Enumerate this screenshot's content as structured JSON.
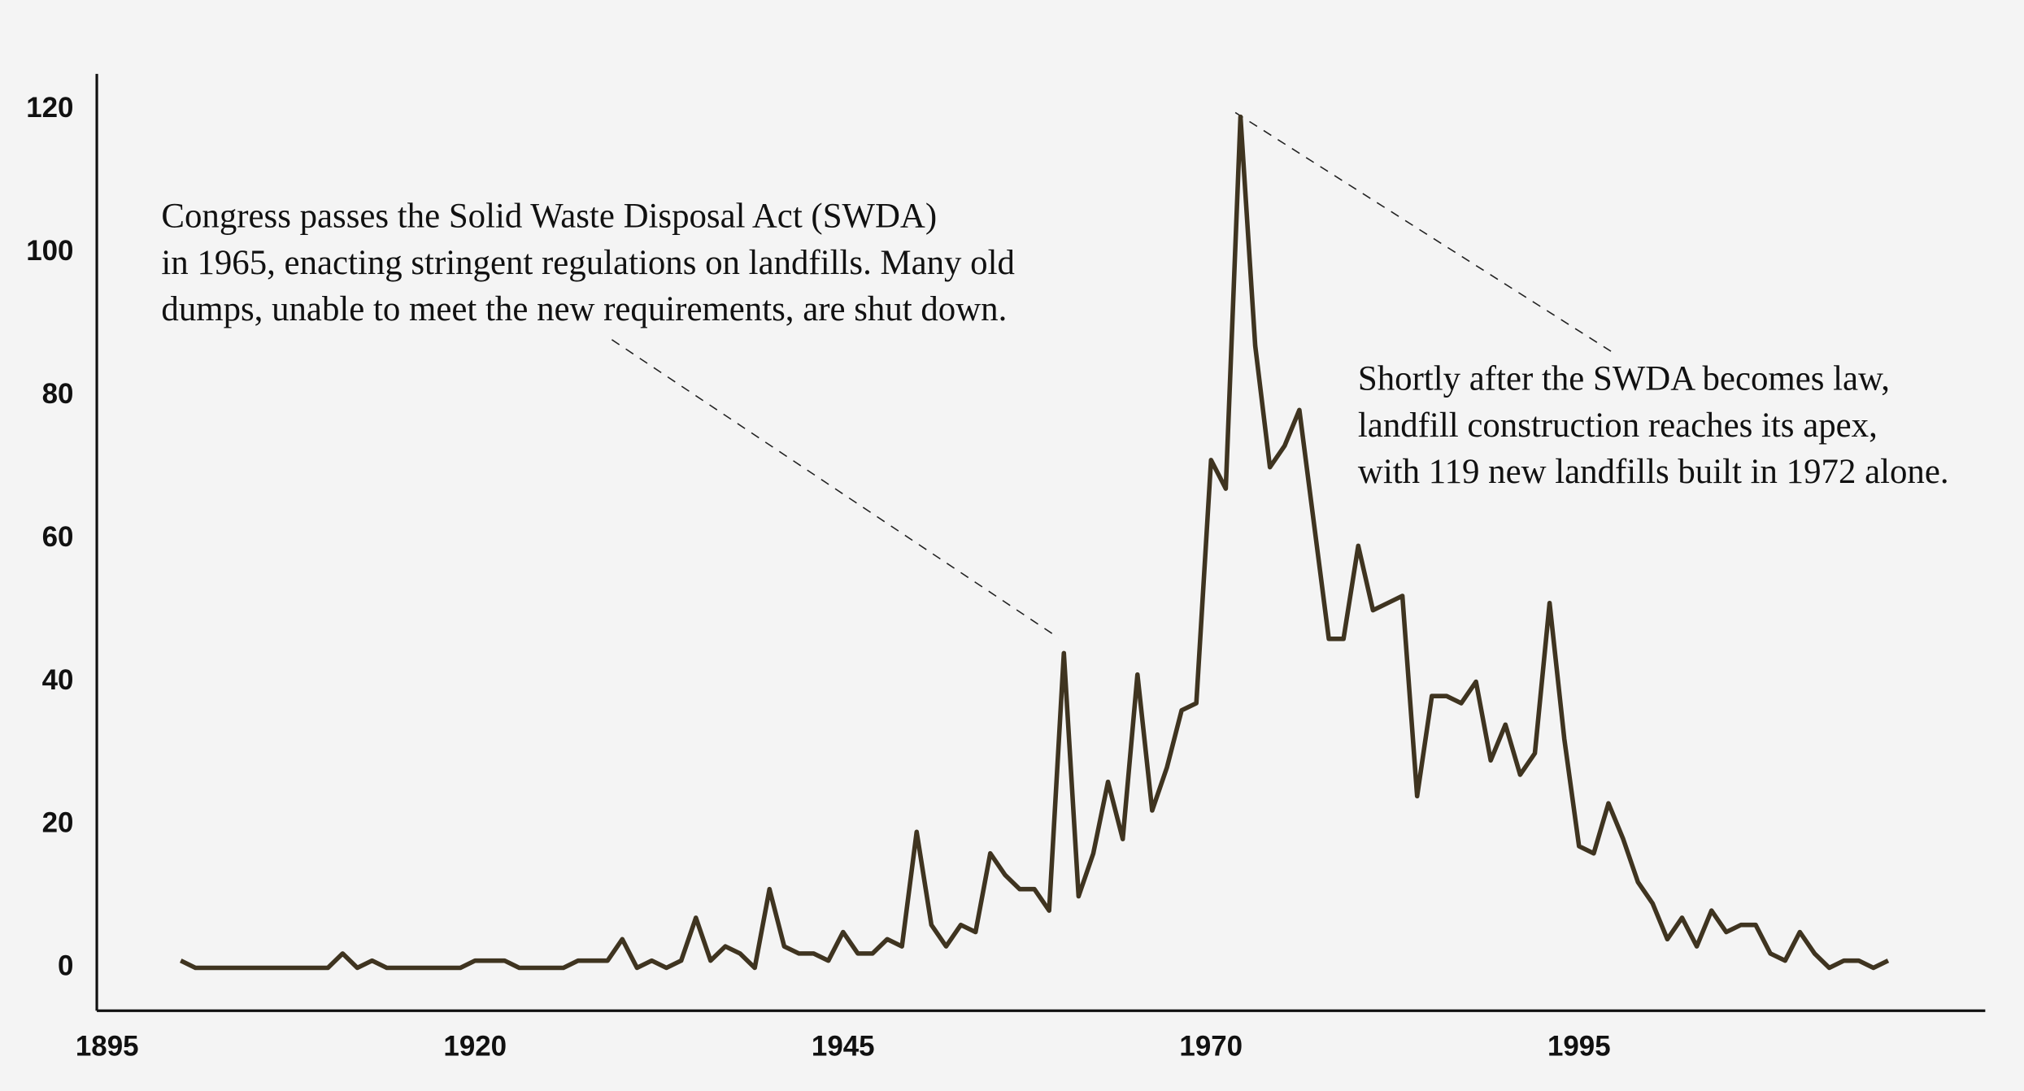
{
  "chart_data": {
    "type": "line",
    "x": [
      1900,
      1901,
      1902,
      1903,
      1904,
      1905,
      1906,
      1907,
      1908,
      1909,
      1910,
      1911,
      1912,
      1913,
      1914,
      1915,
      1916,
      1917,
      1918,
      1919,
      1920,
      1921,
      1922,
      1923,
      1924,
      1925,
      1926,
      1927,
      1928,
      1929,
      1930,
      1931,
      1932,
      1933,
      1934,
      1935,
      1936,
      1937,
      1938,
      1939,
      1940,
      1941,
      1942,
      1943,
      1944,
      1945,
      1946,
      1947,
      1948,
      1949,
      1950,
      1951,
      1952,
      1953,
      1954,
      1955,
      1956,
      1957,
      1958,
      1959,
      1960,
      1961,
      1962,
      1963,
      1964,
      1965,
      1966,
      1967,
      1968,
      1969,
      1970,
      1971,
      1972,
      1973,
      1974,
      1975,
      1976,
      1977,
      1978,
      1979,
      1980,
      1981,
      1982,
      1983,
      1984,
      1985,
      1986,
      1987,
      1988,
      1989,
      1990,
      1991,
      1992,
      1993,
      1994,
      1995,
      1996,
      1997,
      1998,
      1999,
      2000,
      2001,
      2002,
      2003,
      2004,
      2005,
      2006,
      2007,
      2008,
      2009,
      2010,
      2011,
      2012,
      2013,
      2014,
      2015,
      2016
    ],
    "series": [
      {
        "color": "#3f3420",
        "values": [
          1,
          0,
          0,
          0,
          0,
          0,
          0,
          0,
          0,
          0,
          0,
          2,
          0,
          1,
          0,
          0,
          0,
          0,
          0,
          0,
          1,
          1,
          1,
          0,
          0,
          0,
          0,
          1,
          1,
          1,
          4,
          0,
          1,
          0,
          1,
          7,
          1,
          3,
          2,
          0,
          11,
          3,
          2,
          2,
          1,
          5,
          2,
          2,
          4,
          3,
          19,
          6,
          3,
          6,
          5,
          16,
          13,
          11,
          11,
          8,
          44,
          10,
          16,
          26,
          18,
          41,
          22,
          28,
          36,
          37,
          71,
          67,
          119,
          87,
          70,
          73,
          78,
          62,
          46,
          46,
          59,
          50,
          51,
          52,
          24,
          38,
          38,
          37,
          40,
          29,
          34,
          27,
          30,
          51,
          32,
          17,
          16,
          23,
          18,
          12,
          9,
          4,
          7,
          3,
          8,
          5,
          6,
          6,
          2,
          1,
          5,
          2,
          0,
          1,
          1,
          0,
          1
        ]
      }
    ],
    "xlim": [
      1894.3,
      2022.6
    ],
    "xticks": [
      1895,
      1920,
      1945,
      1970,
      1995
    ],
    "ylim": [
      -6,
      125
    ],
    "yticks": [
      0,
      20,
      40,
      60,
      80,
      100,
      120
    ],
    "annotations": [
      {
        "lines": [
          "Congress passes the Solid Waste Disposal Act (SWDA)",
          "in 1965, enacting stringent regulations on landfills. Many old",
          "dumps, unable to meet the new requirements, are shut down."
        ]
      },
      {
        "lines": [
          "Shortly after the SWDA becomes law,",
          "landfill construction reaches its apex,",
          "with 119 new landfills built in 1972 alone."
        ]
      }
    ]
  }
}
